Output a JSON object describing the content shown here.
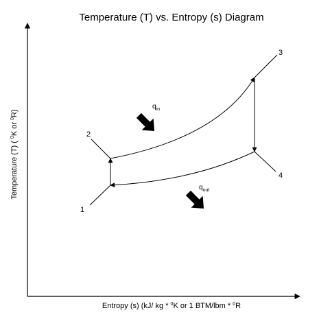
{
  "diagram": {
    "title": "Temperature (T) vs. Entropy (s) Diagram",
    "x_axis": {
      "part1": "Entropy (s) (kJ/ kg * ",
      "sup1": "0",
      "part2": "K or 1 BTM/lbm * ",
      "sup2": "0",
      "part3": "R"
    },
    "y_axis": {
      "part1": "Temperature (T) ( ",
      "sup1": "0",
      "part2": "K or ",
      "sup2": "0",
      "part3": "R)"
    },
    "points": {
      "p1": "1",
      "p2": "2",
      "p3": "3",
      "p4": "4"
    },
    "heat_in": {
      "base": "q",
      "sub": "in"
    },
    "heat_out": {
      "base": "q",
      "sub": "out"
    },
    "colors": {
      "stroke": "#000000",
      "background": "#ffffff"
    }
  }
}
